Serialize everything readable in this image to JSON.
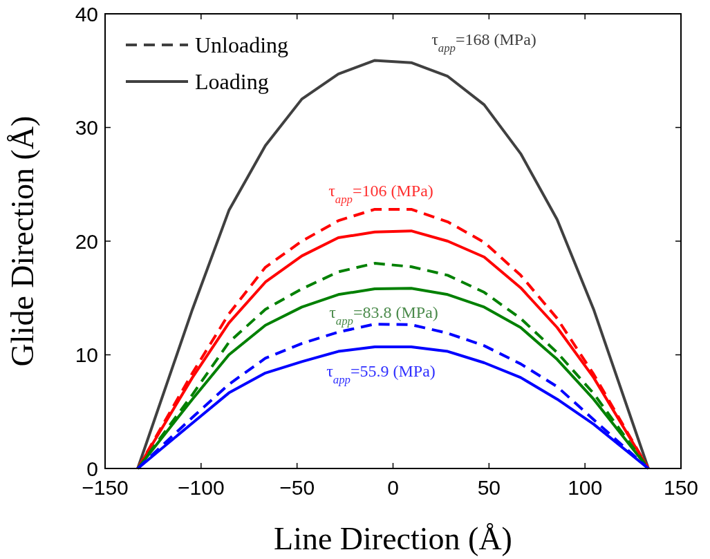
{
  "chart_data": {
    "type": "line",
    "xlabel": "Line Direction (Å)",
    "ylabel": "Glide Direction (Å)",
    "xlim": [
      -150,
      150
    ],
    "xticks": [
      -150,
      -100,
      -50,
      0,
      50,
      100,
      150
    ],
    "ylim": [
      0,
      40
    ],
    "yticks": [
      0,
      10,
      20,
      30,
      40
    ],
    "grid": false,
    "legend": "top left",
    "x": [
      -133,
      -104.5,
      -85.5,
      -66.5,
      -47.5,
      -28.5,
      -9.5,
      9.5,
      28.5,
      47.5,
      66.5,
      85.5,
      104.5,
      133
    ],
    "series": [
      {
        "name": "Loading",
        "color": "#404040",
        "line_style": "solid",
        "values": [
          0,
          14,
          22.7,
          28.4,
          32.5,
          34.7,
          35.9,
          35.7,
          34.5,
          32.0,
          27.7,
          21.9,
          14,
          0
        ]
      },
      {
        "color": "#ff0000",
        "line_style": "solid",
        "values": [
          0,
          8.0,
          12.8,
          16.4,
          18.7,
          20.3,
          20.8,
          20.9,
          20.0,
          18.6,
          15.9,
          12.4,
          8.0,
          0
        ]
      },
      {
        "color": "#008000",
        "line_style": "solid",
        "values": [
          0,
          6.1,
          10.0,
          12.6,
          14.2,
          15.3,
          15.8,
          15.85,
          15.3,
          14.2,
          12.4,
          9.6,
          6.1,
          0
        ]
      },
      {
        "color": "#0000ff",
        "line_style": "solid",
        "values": [
          0,
          4.0,
          6.65,
          8.4,
          9.4,
          10.3,
          10.7,
          10.7,
          10.3,
          9.3,
          8.0,
          6.1,
          3.9,
          0
        ]
      },
      {
        "color": "#ff0000",
        "line_style": "dashed",
        "values": [
          0,
          8.4,
          13.6,
          17.7,
          20.0,
          21.8,
          22.8,
          22.8,
          21.7,
          19.9,
          17.0,
          13.2,
          8.3,
          0
        ]
      },
      {
        "color": "#008000",
        "line_style": "dashed",
        "values": [
          0,
          6.5,
          11.1,
          14.0,
          15.8,
          17.3,
          18.05,
          17.75,
          17.0,
          15.5,
          13.2,
          10.2,
          6.6,
          0
        ]
      },
      {
        "color": "#0000ff",
        "line_style": "dashed",
        "values": [
          0,
          4.5,
          7.4,
          9.7,
          11.0,
          12.0,
          12.7,
          12.65,
          11.9,
          10.8,
          9.2,
          7.2,
          4.3,
          0
        ]
      }
    ],
    "annotations": [
      "Unloading",
      "τ$_{app}$=168 (MPa)",
      "τ$_{app}$=106 (MPa)",
      "τ$_{app}$=83.8 (MPa)",
      "τ$_{app}$=55.9 (MPa)"
    ]
  }
}
